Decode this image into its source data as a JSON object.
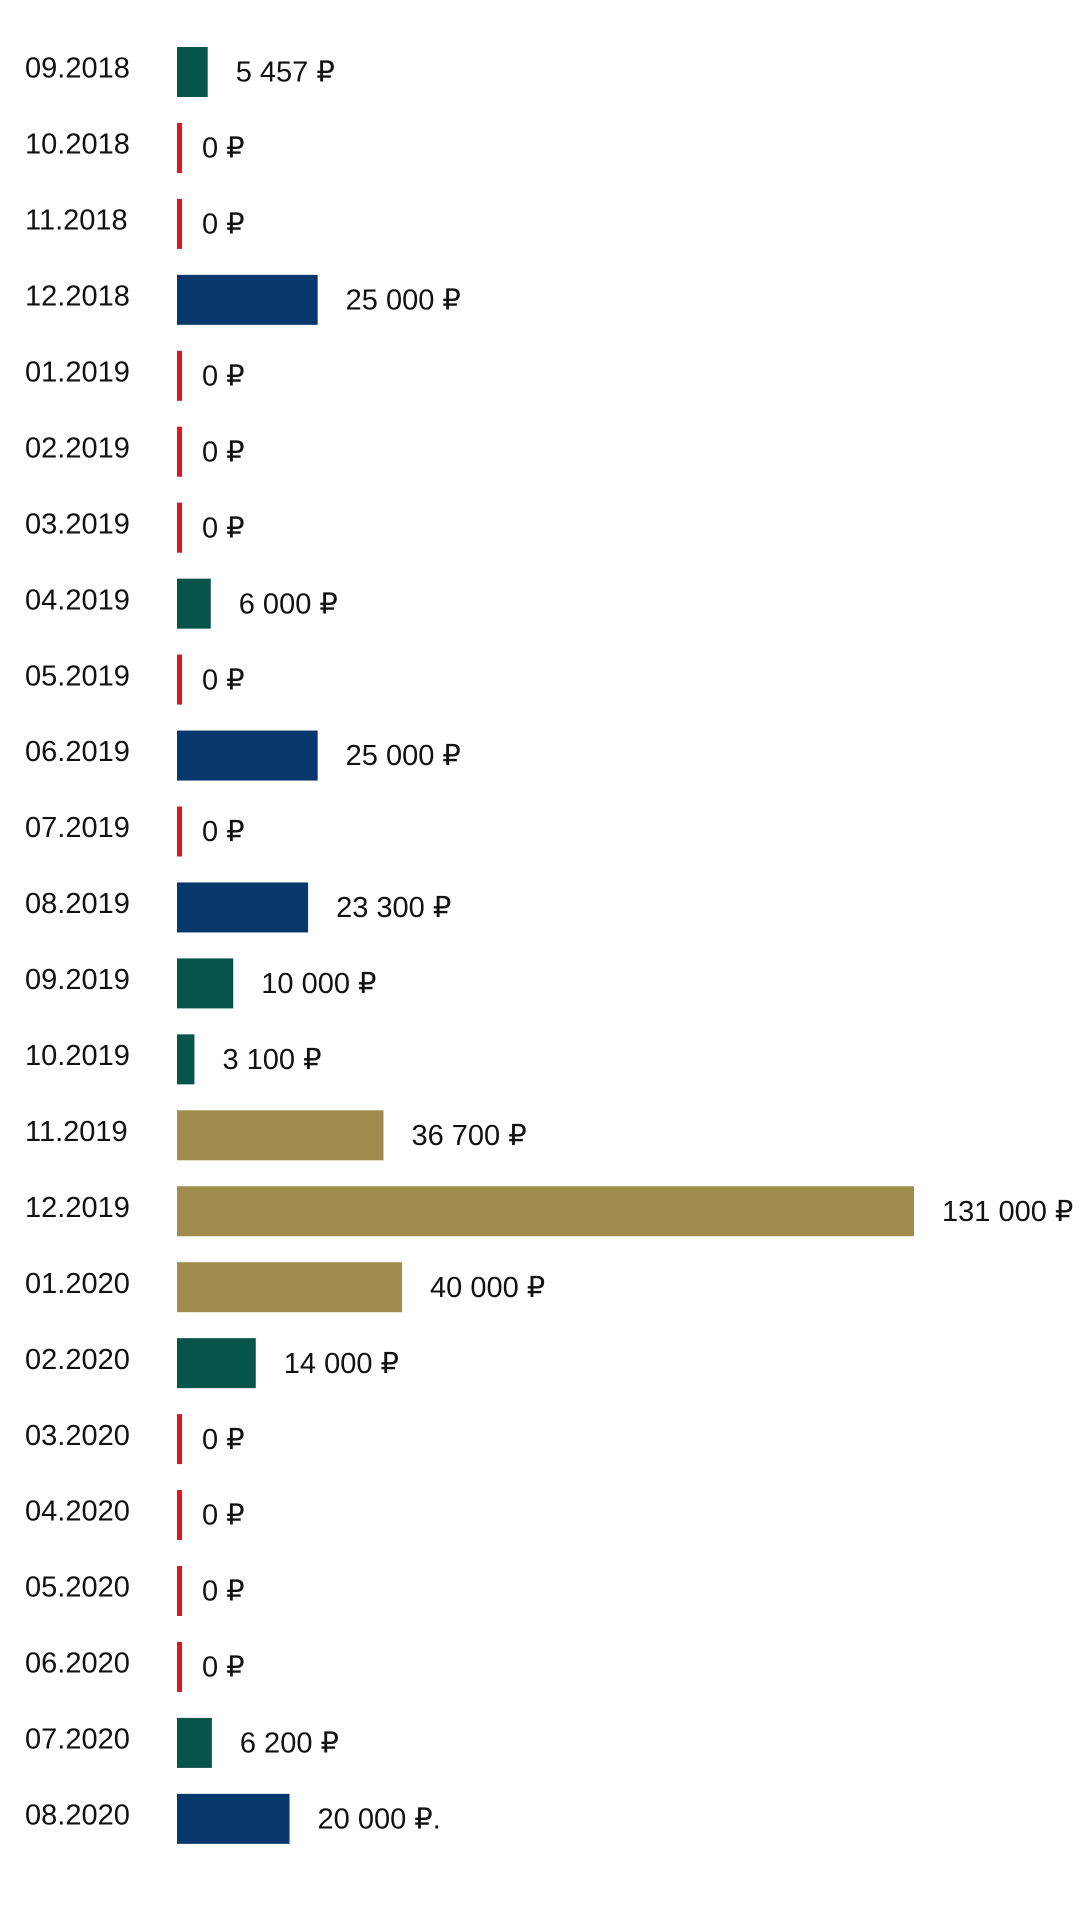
{
  "chart_data": {
    "type": "bar",
    "orientation": "horizontal",
    "categories": [
      "09.2018",
      "10.2018",
      "11.2018",
      "12.2018",
      "01.2019",
      "02.2019",
      "03.2019",
      "04.2019",
      "05.2019",
      "06.2019",
      "07.2019",
      "08.2019",
      "09.2019",
      "10.2019",
      "11.2019",
      "12.2019",
      "01.2020",
      "02.2020",
      "03.2020",
      "04.2020",
      "05.2020",
      "06.2020",
      "07.2020",
      "08.2020"
    ],
    "values": [
      5457,
      0,
      0,
      25000,
      0,
      0,
      0,
      6000,
      0,
      25000,
      0,
      23300,
      10000,
      3100,
      36700,
      131000,
      40000,
      14000,
      0,
      0,
      0,
      0,
      6200,
      20000
    ],
    "value_labels": [
      "5 457 ₽",
      "0 ₽",
      "0 ₽",
      "25 000 ₽",
      "0 ₽",
      "0 ₽",
      "0 ₽",
      "6 000 ₽",
      "0 ₽",
      "25 000 ₽",
      "0 ₽",
      "23 300 ₽",
      "10 000 ₽",
      "3 100 ₽",
      "36 700 ₽",
      "131 000 ₽",
      "40 000 ₽",
      "14 000 ₽",
      "0 ₽",
      "0 ₽",
      "0 ₽",
      "0 ₽",
      "6 200 ₽",
      "20 000 ₽."
    ],
    "bar_colors": [
      "#07544b",
      "#e3141c",
      "#e3141c",
      "#08386b",
      "#e3141c",
      "#e3141c",
      "#e3141c",
      "#07544b",
      "#e3141c",
      "#08386b",
      "#e3141c",
      "#08386b",
      "#07544b",
      "#07544b",
      "#9f8c4d",
      "#9f8c4d",
      "#9f8c4d",
      "#07544b",
      "#e3141c",
      "#e3141c",
      "#e3141c",
      "#e3141c",
      "#07544b",
      "#08386b"
    ],
    "colors": {
      "green": "#07544b",
      "blue": "#08386b",
      "gold": "#9f8c4d",
      "zero_marker": "#e3141c"
    },
    "xlim": [
      0,
      131000
    ],
    "grid": false,
    "title": "",
    "xlabel": "",
    "ylabel": ""
  }
}
